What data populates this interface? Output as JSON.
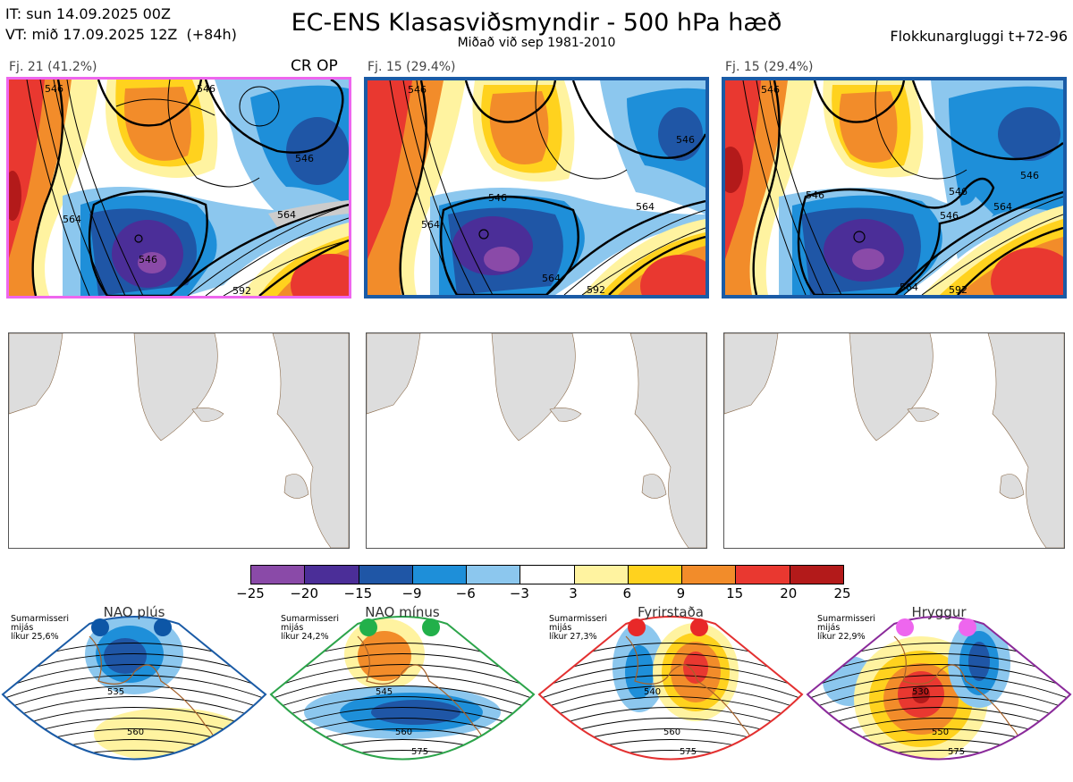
{
  "header": {
    "it_line": "IT: sun 14.09.2025 00Z",
    "vt_line": "VT: mið 17.09.2025 12Z  (+84h)",
    "title": "EC-ENS Klasasviðsmyndir - 500 hPa hæð",
    "subtitle": "Miðað við sep 1981-2010",
    "window": "Flokkunargluggi t+72-96"
  },
  "clusters": [
    {
      "label": "Fj. 21 (41.2%)",
      "extra": "CR OP",
      "frame_color": "#ee66ee",
      "contours": [
        "546",
        "546",
        "546",
        "564",
        "546",
        "564",
        "592"
      ]
    },
    {
      "label": "Fj. 15 (29.4%)",
      "frame_color": "#1a5ba6",
      "contours": [
        "546",
        "546",
        "546",
        "564",
        "564",
        "564",
        "592"
      ]
    },
    {
      "label": "Fj. 15 (29.4%)",
      "frame_color": "#1a5ba6",
      "contours": [
        "546",
        "546",
        "546",
        "546",
        "546",
        "564",
        "564",
        "592"
      ]
    }
  ],
  "colorbar": {
    "ticks": [
      "−25",
      "−20",
      "−15",
      "−9",
      "−6",
      "−3",
      "3",
      "6",
      "9",
      "15",
      "20",
      "25"
    ],
    "colors": [
      "#8a4aa8",
      "#4b2e98",
      "#1f56a6",
      "#1e8fd9",
      "#8cc7ee",
      "#ffffff",
      "#fff3a0",
      "#ffd21e",
      "#f28c2a",
      "#e93830",
      "#b31a1a"
    ]
  },
  "regimes": [
    {
      "name": "NAO plús",
      "note": [
        "Sumarmisseri",
        "mijás",
        "líkur 25,6%"
      ],
      "frame_color": "#1a5ba6",
      "dot_color": "#0d56a6",
      "contours": [
        "535",
        "560"
      ]
    },
    {
      "name": "NAO mínus",
      "note": [
        "Sumarmisseri",
        "mijás",
        "líkur 24,2%"
      ],
      "frame_color": "#2ca44a",
      "dot_color": "#22b04a",
      "contours": [
        "545",
        "560",
        "575"
      ]
    },
    {
      "name": "Fyrirstaða",
      "note": [
        "Sumarmisseri",
        "mijás",
        "líkur 27,3%"
      ],
      "frame_color": "#e33030",
      "dot_color": "#e82828",
      "contours": [
        "540",
        "560",
        "575"
      ]
    },
    {
      "name": "Hryggur",
      "note": [
        "Sumarmisseri",
        "mijás",
        "líkur 22,9%"
      ],
      "frame_color": "#8a2a9a",
      "dot_color": "#ee66ee",
      "contours": [
        "530",
        "550",
        "575"
      ]
    }
  ]
}
